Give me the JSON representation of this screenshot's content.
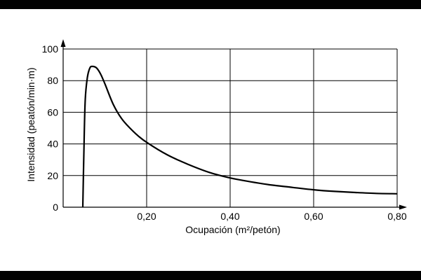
{
  "chart_data": {
    "type": "line",
    "title": "",
    "xlabel": "Ocupación (m²/petón)",
    "ylabel": "Intensidad (peatón/min·m)",
    "xlim": [
      0,
      0.8
    ],
    "ylim": [
      0,
      100
    ],
    "x_ticks": [
      0.2,
      0.4,
      0.6,
      0.8
    ],
    "x_tick_labels": [
      "0,20",
      "0,40",
      "0,60",
      "0,80"
    ],
    "y_ticks": [
      0,
      20,
      40,
      60,
      80,
      100
    ],
    "y_tick_labels": [
      "0",
      "20",
      "40",
      "60",
      "80",
      "100"
    ],
    "grid": true,
    "series": [
      {
        "points": [
          [
            0.047,
            0
          ],
          [
            0.05,
            40
          ],
          [
            0.053,
            68
          ],
          [
            0.058,
            82
          ],
          [
            0.064,
            88
          ],
          [
            0.07,
            89
          ],
          [
            0.08,
            88
          ],
          [
            0.09,
            84
          ],
          [
            0.1,
            78
          ],
          [
            0.12,
            65
          ],
          [
            0.14,
            56
          ],
          [
            0.16,
            50
          ],
          [
            0.18,
            45
          ],
          [
            0.2,
            41
          ],
          [
            0.25,
            33
          ],
          [
            0.3,
            27
          ],
          [
            0.35,
            22
          ],
          [
            0.4,
            18.5
          ],
          [
            0.45,
            16
          ],
          [
            0.5,
            14
          ],
          [
            0.55,
            12.5
          ],
          [
            0.6,
            11
          ],
          [
            0.65,
            10
          ],
          [
            0.7,
            9.3
          ],
          [
            0.75,
            8.7
          ],
          [
            0.8,
            8.5
          ]
        ]
      }
    ]
  }
}
